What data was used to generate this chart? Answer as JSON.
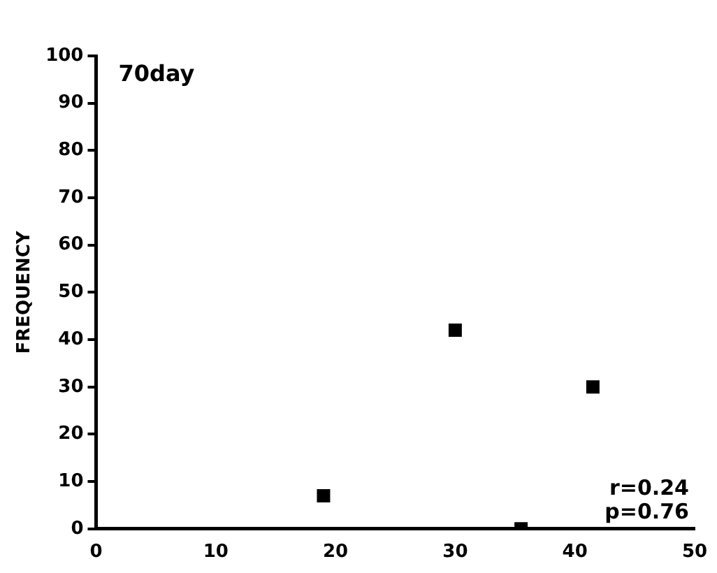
{
  "chart_data": {
    "type": "scatter",
    "title": "70day",
    "ylabel": "FREQUENCY",
    "x": [
      19,
      30,
      35.5,
      41.5
    ],
    "series": [
      {
        "color": "#000000",
        "values": [
          7,
          42,
          0,
          30
        ]
      }
    ],
    "xlim": [
      0,
      50
    ],
    "xticks": [
      0,
      10,
      20,
      30,
      40,
      50
    ],
    "ylim": [
      0,
      100
    ],
    "yticks": [
      0,
      10,
      20,
      30,
      40,
      50,
      60,
      70,
      80,
      90,
      100
    ],
    "grid": false,
    "legend": false,
    "marker": "square",
    "annotations": [
      "r=0.24",
      "p=0.76"
    ]
  }
}
